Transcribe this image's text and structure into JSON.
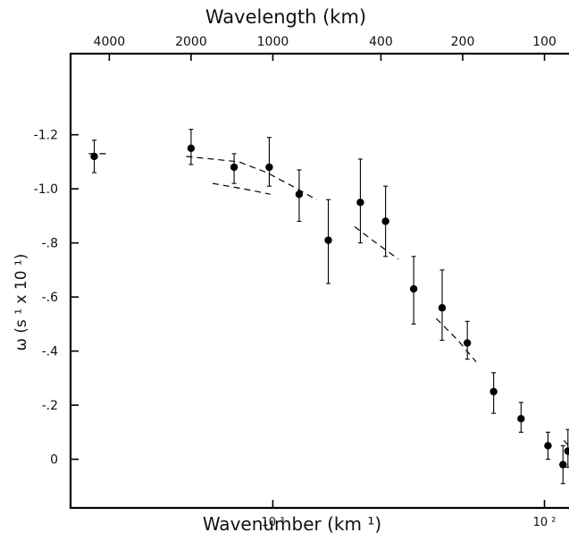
{
  "chart_data": {
    "type": "scatter",
    "title": "Wavelength (km)",
    "xlabel": "Wavenumber (km ¹)",
    "ylabel": "ω (s ¹ x 10 ¹)",
    "xscale": "log",
    "xlim": [
      0.00018,
      0.0125
    ],
    "ylim": [
      0.18,
      -1.5
    ],
    "grid": false,
    "legend": "none",
    "y_ticks": [
      {
        "value": -1.2,
        "label": "-1.2"
      },
      {
        "value": -1.0,
        "label": "-1.0"
      },
      {
        "value": -0.8,
        "label": "-.8"
      },
      {
        "value": -0.6,
        "label": "-.6"
      },
      {
        "value": -0.4,
        "label": "-.4"
      },
      {
        "value": -0.2,
        "label": "-.2"
      },
      {
        "value": 0,
        "label": "0"
      }
    ],
    "x_ticks": [
      {
        "value": 0.001,
        "label": "10 ³"
      },
      {
        "value": 0.01,
        "label": "10 ²"
      }
    ],
    "top_ticks": [
      {
        "value": 4000,
        "label": "4000"
      },
      {
        "value": 2000,
        "label": "2000"
      },
      {
        "value": 1000,
        "label": "1000"
      },
      {
        "value": 400,
        "label": "400"
      },
      {
        "value": 200,
        "label": "200"
      },
      {
        "value": 100,
        "label": "100"
      }
    ],
    "points": [
      {
        "x": 0.00022,
        "y": -1.12,
        "err_up": 0.06,
        "err_down": 0.06
      },
      {
        "x": 0.0005,
        "y": -1.15,
        "err_up": 0.07,
        "err_down": 0.06
      },
      {
        "x": 0.00072,
        "y": -1.08,
        "err_up": 0.05,
        "err_down": 0.06
      },
      {
        "x": 0.00097,
        "y": -1.08,
        "err_up": 0.11,
        "err_down": 0.07
      },
      {
        "x": 0.00125,
        "y": -0.98,
        "err_up": 0.09,
        "err_down": 0.1
      },
      {
        "x": 0.0016,
        "y": -0.81,
        "err_up": 0.15,
        "err_down": 0.16
      },
      {
        "x": 0.0021,
        "y": -0.95,
        "err_up": 0.16,
        "err_down": 0.15
      },
      {
        "x": 0.0026,
        "y": -0.88,
        "err_up": 0.13,
        "err_down": 0.13
      },
      {
        "x": 0.0033,
        "y": -0.63,
        "err_up": 0.12,
        "err_down": 0.13
      },
      {
        "x": 0.0042,
        "y": -0.56,
        "err_up": 0.14,
        "err_down": 0.12
      },
      {
        "x": 0.0052,
        "y": -0.43,
        "err_up": 0.08,
        "err_down": 0.06
      },
      {
        "x": 0.0065,
        "y": -0.25,
        "err_up": 0.07,
        "err_down": 0.08
      },
      {
        "x": 0.0082,
        "y": -0.15,
        "err_up": 0.06,
        "err_down": 0.05
      },
      {
        "x": 0.0103,
        "y": -0.05,
        "err_up": 0.05,
        "err_down": 0.05
      },
      {
        "x": 0.0117,
        "y": 0.02,
        "err_up": 0.07,
        "err_down": 0.07
      },
      {
        "x": 0.0122,
        "y": -0.03,
        "err_up": 0.08,
        "err_down": 0.06
      }
    ],
    "curves": [
      {
        "x": [
          0.00021,
          0.00025
        ],
        "y": [
          -1.13,
          -1.13
        ]
      },
      {
        "x": [
          0.00048,
          0.0006,
          0.00075,
          0.00095,
          0.00118,
          0.00145
        ],
        "y": [
          -1.12,
          -1.11,
          -1.1,
          -1.06,
          -1.01,
          -0.96
        ]
      },
      {
        "x": [
          0.0006,
          0.00078,
          0.00098
        ],
        "y": [
          -1.02,
          -1.0,
          -0.98
        ]
      },
      {
        "x": [
          0.002,
          0.0024,
          0.0029
        ],
        "y": [
          -0.86,
          -0.8,
          -0.74
        ]
      },
      {
        "x": [
          0.004,
          0.0048,
          0.0056
        ],
        "y": [
          -0.52,
          -0.44,
          -0.36
        ]
      },
      {
        "x": [
          0.0118,
          0.0125
        ],
        "y": [
          -0.07,
          -0.04
        ]
      }
    ]
  }
}
